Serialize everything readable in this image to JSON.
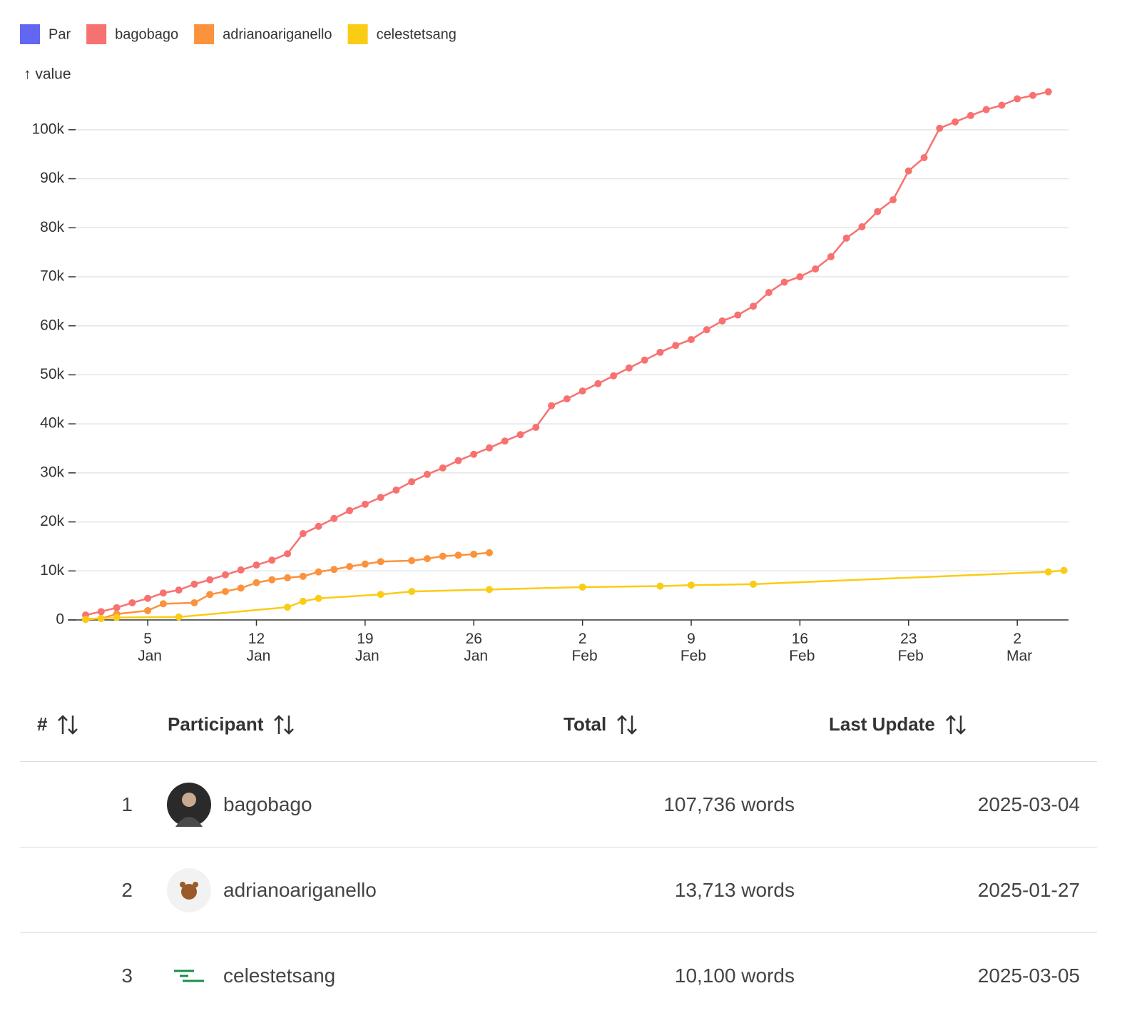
{
  "chart_data": {
    "type": "line",
    "y_label": "↑ value",
    "xlim": [
      -0.15,
      64.3
    ],
    "ylim": [
      0,
      109000
    ],
    "xticks": [
      {
        "value": 5,
        "label": "5 Jan"
      },
      {
        "value": 12,
        "label": "12 Jan"
      },
      {
        "value": 19,
        "label": "19 Jan"
      },
      {
        "value": 26,
        "label": "26 Jan"
      },
      {
        "value": 33,
        "label": "2 Feb"
      },
      {
        "value": 40,
        "label": "9 Feb"
      },
      {
        "value": 47,
        "label": "16 Feb"
      },
      {
        "value": 54,
        "label": "23 Feb"
      },
      {
        "value": 61,
        "label": "2 Mar"
      }
    ],
    "yticks": [
      0,
      {
        "value": 10000,
        "label": "10k"
      },
      {
        "value": 20000,
        "label": "20k"
      },
      {
        "value": 30000,
        "label": "30k"
      },
      {
        "value": 40000,
        "label": "40k"
      },
      {
        "value": 50000,
        "label": "50k"
      },
      {
        "value": 60000,
        "label": "60k"
      },
      {
        "value": 70000,
        "label": "70k"
      },
      {
        "value": 80000,
        "label": "80k"
      },
      {
        "value": 90000,
        "label": "90k"
      },
      {
        "value": 100000,
        "label": "100k"
      }
    ],
    "grid": true,
    "legend": "top-left",
    "series": [
      {
        "name": "Par",
        "color": "#6366f1",
        "x": [],
        "values": []
      },
      {
        "name": "bagobago",
        "color": "#f87171",
        "x": [
          1,
          2,
          3,
          4,
          5,
          6,
          7,
          8,
          9,
          10,
          11,
          12,
          13,
          14,
          15,
          16,
          17,
          18,
          19,
          20,
          21,
          22,
          23,
          24,
          25,
          26,
          27,
          28,
          29,
          30,
          31,
          32,
          33,
          34,
          35,
          36,
          37,
          38,
          39,
          40,
          41,
          42,
          43,
          44,
          45,
          46,
          47,
          48,
          49,
          50,
          51,
          52,
          53,
          54,
          55,
          56,
          57,
          58,
          59,
          60,
          61,
          62,
          63
        ],
        "values": [
          1000,
          1700,
          2500,
          3500,
          4400,
          5500,
          6100,
          7300,
          8200,
          9200,
          10200,
          11200,
          12200,
          13500,
          17600,
          19100,
          20700,
          22300,
          23600,
          25000,
          26500,
          28200,
          29700,
          31000,
          32500,
          33800,
          35100,
          36500,
          37800,
          39300,
          43700,
          45100,
          46700,
          48200,
          49800,
          51400,
          53000,
          54600,
          56000,
          57200,
          59200,
          61000,
          62200,
          64000,
          66800,
          68900,
          70000,
          71600,
          74100,
          77900,
          80200,
          83300,
          85700,
          91600,
          94300,
          100300,
          101600,
          102900,
          104100,
          105000,
          106300,
          107000,
          107736
        ]
      },
      {
        "name": "adrianoariganello",
        "color": "#fb923c",
        "x": [
          1,
          2,
          3,
          5,
          6,
          8,
          9,
          10,
          11,
          12,
          13,
          14,
          15,
          16,
          17,
          18,
          19,
          20,
          22,
          23,
          24,
          25,
          26,
          27
        ],
        "values": [
          200,
          300,
          1200,
          1900,
          3300,
          3500,
          5200,
          5800,
          6500,
          7600,
          8200,
          8600,
          8900,
          9800,
          10300,
          10900,
          11400,
          11900,
          12100,
          12500,
          13000,
          13200,
          13400,
          13713
        ]
      },
      {
        "name": "celestetsang",
        "color": "#facc15",
        "x": [
          1,
          2,
          3,
          7,
          14,
          15,
          16,
          20,
          22,
          27,
          33,
          38,
          40,
          44,
          63,
          64
        ],
        "values": [
          100,
          300,
          500,
          600,
          2600,
          3800,
          4400,
          5200,
          5800,
          6200,
          6700,
          6900,
          7100,
          7300,
          9800,
          10100
        ]
      }
    ]
  },
  "table": {
    "headers": [
      "#",
      "Participant",
      "Total",
      "Last Update"
    ],
    "rows": [
      [
        "1",
        "bagobago",
        "107,736 words",
        "2025-03-04"
      ],
      [
        "2",
        "adrianoariganello",
        "13,713 words",
        "2025-01-27"
      ],
      [
        "3",
        "celestetsang",
        "10,100 words",
        "2025-03-05"
      ]
    ]
  }
}
